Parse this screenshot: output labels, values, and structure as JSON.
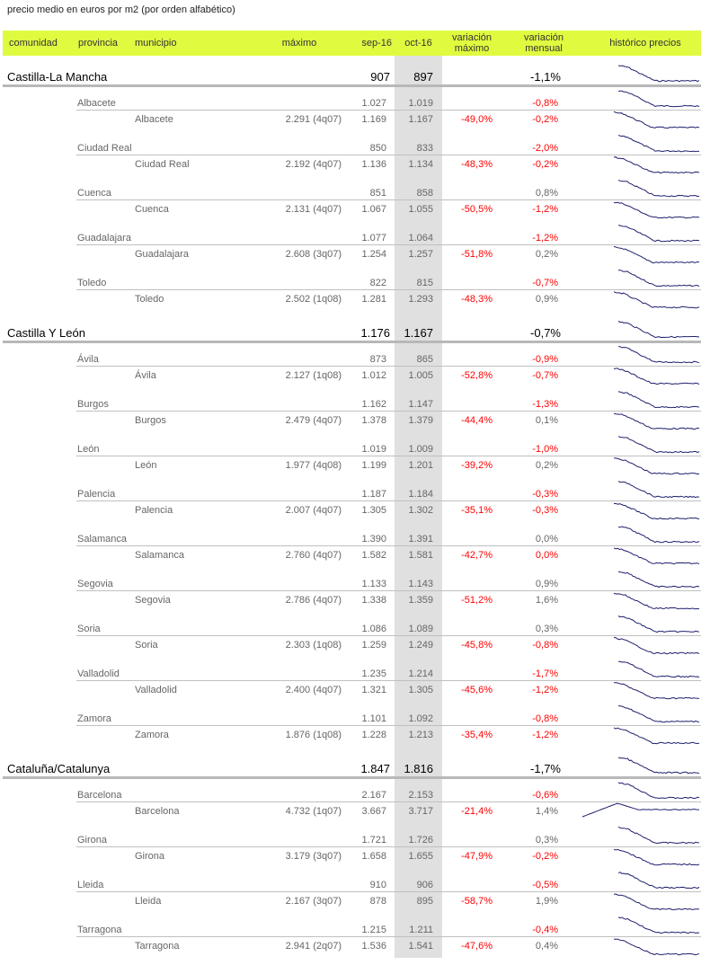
{
  "title": "precio medio en euros por m2 (por orden alfabético)",
  "header": {
    "comunidad": "comunidad",
    "provincia": "provincia",
    "municipio": "municipio",
    "maximo": "máximo",
    "sep": "sep-16",
    "oct": "oct-16",
    "var_max_1": "variación",
    "var_max_2": "máximo",
    "var_men_1": "variación",
    "var_men_2": "mensual",
    "historico": "histórico precios"
  },
  "colors": {
    "header_bg": "#e0fa40",
    "negative": "#ff0000",
    "sparkline": "#1f1f6e",
    "highlight_column": "#e0e0e0"
  },
  "regions": [
    {
      "name": "Castilla-La Mancha",
      "sep": "907",
      "oct": "897",
      "mensual": "-1,1%",
      "provinces": [
        {
          "name": "Albacete",
          "sep": "1.027",
          "oct": "1.019",
          "mensual": "-0,8%",
          "municipio": {
            "name": "Albacete",
            "maximo": "2.291 (4q07)",
            "sep": "1.169",
            "oct": "1.167",
            "var_max": "-49,0%",
            "mensual": "-0,2%"
          }
        },
        {
          "name": "Ciudad Real",
          "sep": "850",
          "oct": "833",
          "mensual": "-2,0%",
          "municipio": {
            "name": "Ciudad Real",
            "maximo": "2.192 (4q07)",
            "sep": "1.136",
            "oct": "1.134",
            "var_max": "-48,3%",
            "mensual": "-0,2%"
          }
        },
        {
          "name": "Cuenca",
          "sep": "851",
          "oct": "858",
          "mensual": "0,8%",
          "municipio": {
            "name": "Cuenca",
            "maximo": "2.131 (4q07)",
            "sep": "1.067",
            "oct": "1.055",
            "var_max": "-50,5%",
            "mensual": "-1,2%"
          }
        },
        {
          "name": "Guadalajara",
          "sep": "1.077",
          "oct": "1.064",
          "mensual": "-1,2%",
          "municipio": {
            "name": "Guadalajara",
            "maximo": "2.608 (3q07)",
            "sep": "1.254",
            "oct": "1.257",
            "var_max": "-51,8%",
            "mensual": "0,2%"
          }
        },
        {
          "name": "Toledo",
          "sep": "822",
          "oct": "815",
          "mensual": "-0,7%",
          "municipio": {
            "name": "Toledo",
            "maximo": "2.502 (1q08)",
            "sep": "1.281",
            "oct": "1.293",
            "var_max": "-48,3%",
            "mensual": "0,9%"
          }
        }
      ]
    },
    {
      "name": "Castilla Y León",
      "sep": "1.176",
      "oct": "1.167",
      "mensual": "-0,7%",
      "provinces": [
        {
          "name": "Ávila",
          "sep": "873",
          "oct": "865",
          "mensual": "-0,9%",
          "municipio": {
            "name": "Ávila",
            "maximo": "2.127 (1q08)",
            "sep": "1.012",
            "oct": "1.005",
            "var_max": "-52,8%",
            "mensual": "-0,7%"
          }
        },
        {
          "name": "Burgos",
          "sep": "1.162",
          "oct": "1.147",
          "mensual": "-1,3%",
          "municipio": {
            "name": "Burgos",
            "maximo": "2.479 (4q07)",
            "sep": "1.378",
            "oct": "1.379",
            "var_max": "-44,4%",
            "mensual": "0,1%"
          }
        },
        {
          "name": "León",
          "sep": "1.019",
          "oct": "1.009",
          "mensual": "-1,0%",
          "municipio": {
            "name": "León",
            "maximo": "1.977 (4q08)",
            "sep": "1.199",
            "oct": "1.201",
            "var_max": "-39,2%",
            "mensual": "0,2%"
          }
        },
        {
          "name": "Palencia",
          "sep": "1.187",
          "oct": "1.184",
          "mensual": "-0,3%",
          "municipio": {
            "name": "Palencia",
            "maximo": "2.007 (4q07)",
            "sep": "1.305",
            "oct": "1.302",
            "var_max": "-35,1%",
            "mensual": "-0,3%"
          }
        },
        {
          "name": "Salamanca",
          "sep": "1.390",
          "oct": "1.391",
          "mensual": "0,0%",
          "municipio": {
            "name": "Salamanca",
            "maximo": "2.760 (4q07)",
            "sep": "1.582",
            "oct": "1.581",
            "var_max": "-42,7%",
            "mensual": "0,0%",
            "mensual_red": true
          }
        },
        {
          "name": "Segovia",
          "sep": "1.133",
          "oct": "1.143",
          "mensual": "0,9%",
          "municipio": {
            "name": "Segovia",
            "maximo": "2.786 (4q07)",
            "sep": "1.338",
            "oct": "1.359",
            "var_max": "-51,2%",
            "mensual": "1,6%"
          }
        },
        {
          "name": "Soria",
          "sep": "1.086",
          "oct": "1.089",
          "mensual": "0,3%",
          "municipio": {
            "name": "Soria",
            "maximo": "2.303 (1q08)",
            "sep": "1.259",
            "oct": "1.249",
            "var_max": "-45,8%",
            "mensual": "-0,8%"
          }
        },
        {
          "name": "Valladolid",
          "sep": "1.235",
          "oct": "1.214",
          "mensual": "-1,7%",
          "municipio": {
            "name": "Valladolid",
            "maximo": "2.400 (4q07)",
            "sep": "1.321",
            "oct": "1.305",
            "var_max": "-45,6%",
            "mensual": "-1,2%"
          }
        },
        {
          "name": "Zamora",
          "sep": "1.101",
          "oct": "1.092",
          "mensual": "-0,8%",
          "municipio": {
            "name": "Zamora",
            "maximo": "1.876 (1q08)",
            "sep": "1.228",
            "oct": "1.213",
            "var_max": "-35,4%",
            "mensual": "-1,2%"
          }
        }
      ]
    },
    {
      "name": "Cataluña/Catalunya",
      "sep": "1.847",
      "oct": "1.816",
      "mensual": "-1,7%",
      "provinces": [
        {
          "name": "Barcelona",
          "sep": "2.167",
          "oct": "2.153",
          "mensual": "-0,6%",
          "municipio": {
            "name": "Barcelona",
            "maximo": "4.732 (1q07)",
            "sep": "3.667",
            "oct": "3.717",
            "var_max": "-21,4%",
            "mensual": "1,4%"
          }
        },
        {
          "name": "Girona",
          "sep": "1.721",
          "oct": "1.726",
          "mensual": "0,3%",
          "municipio": {
            "name": "Girona",
            "maximo": "3.179 (3q07)",
            "sep": "1.658",
            "oct": "1.655",
            "var_max": "-47,9%",
            "mensual": "-0,2%"
          }
        },
        {
          "name": "Lleida",
          "sep": "910",
          "oct": "906",
          "mensual": "-0,5%",
          "municipio": {
            "name": "Lleida",
            "maximo": "2.167 (3q07)",
            "sep": "878",
            "oct": "895",
            "var_max": "-58,7%",
            "mensual": "1,9%"
          }
        },
        {
          "name": "Tarragona",
          "sep": "1.215",
          "oct": "1.211",
          "mensual": "-0,4%",
          "municipio": {
            "name": "Tarragona",
            "maximo": "2.941 (2q07)",
            "sep": "1.536",
            "oct": "1.541",
            "var_max": "-47,6%",
            "mensual": "0,4%"
          }
        }
      ]
    }
  ]
}
